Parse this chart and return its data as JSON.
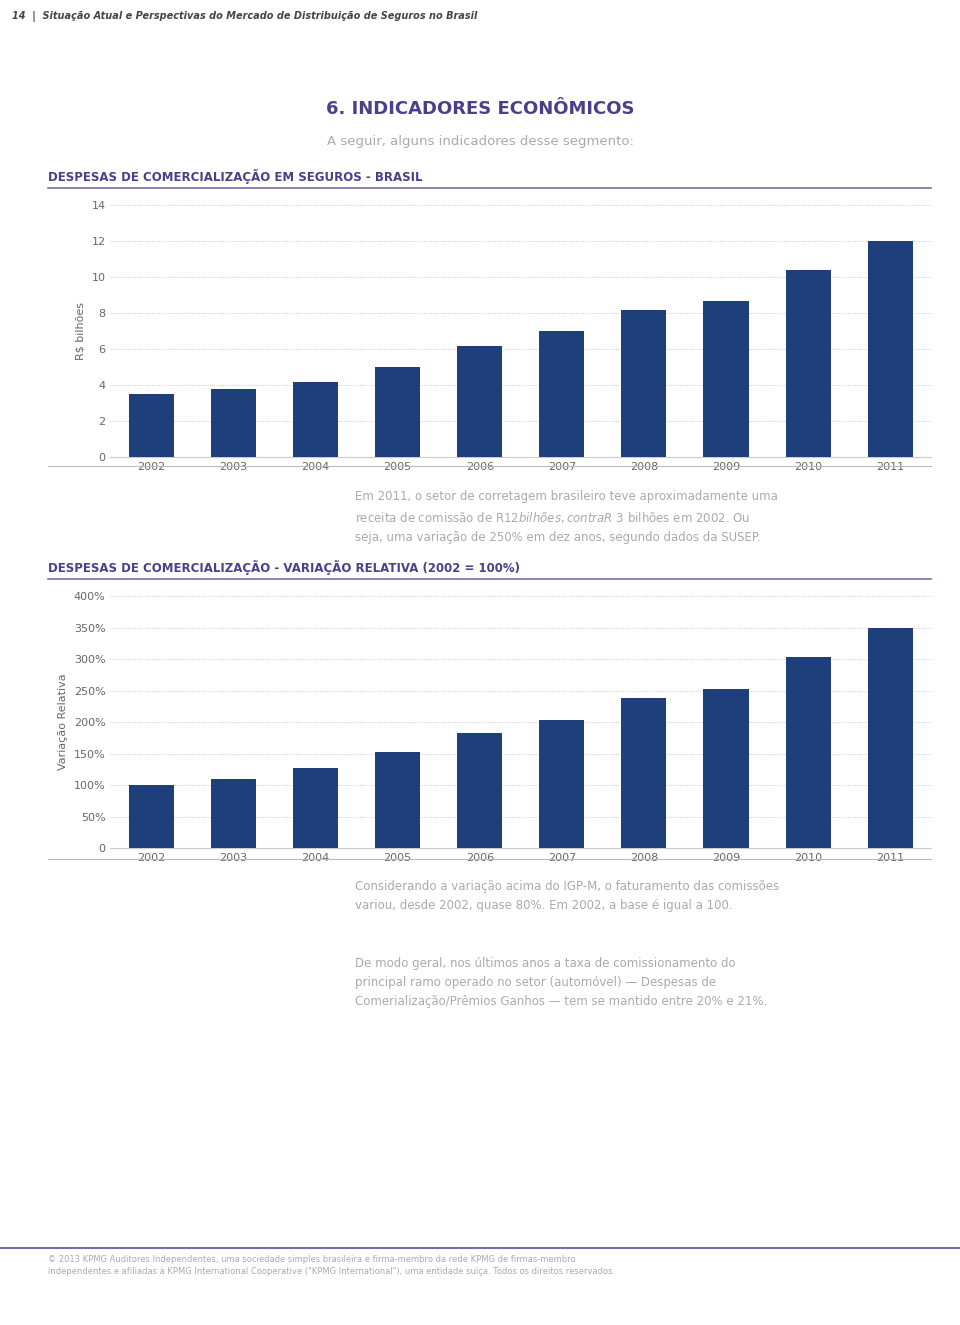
{
  "page_number": "14",
  "header_text": "Situação Atual e Perspectivas do Mercado de Distribuição de Seguros no Brasil",
  "section_title": "6. INDICADORES ECONÔMICOS",
  "section_subtitle": "A seguir, alguns indicadores desse segmento:",
  "chart1_title": "DESPESAS DE COMERCIALIZAÇÃO EM SEGUROS - BRASIL",
  "chart1_ylabel": "R$ bilhões",
  "chart1_years": [
    2002,
    2003,
    2004,
    2005,
    2006,
    2007,
    2008,
    2009,
    2010,
    2011
  ],
  "chart1_values": [
    3.5,
    3.8,
    4.2,
    5.0,
    6.2,
    7.0,
    8.2,
    8.7,
    10.4,
    12.0
  ],
  "chart1_ylim": [
    0,
    14
  ],
  "chart1_yticks": [
    0,
    2,
    4,
    6,
    8,
    10,
    12,
    14
  ],
  "chart1_bar_color": "#1F3F7A",
  "chart1_grid_color": "#BBBBBB",
  "paragraph1": "Em 2011, o setor de corretagem brasileiro teve aproximadamente uma\nreceita de comissão de R$ 12 bilhões, contra R$ 3 bilhões em 2002. Ou\nseja, uma variação de 250% em dez anos, segundo dados da SUSEP.",
  "chart2_title": "DESPESAS DE COMERCIALIZAÇÃO - VARIAÇÃO RELATIVA (2002 = 100%)",
  "chart2_ylabel": "Variação Relativa",
  "chart2_years": [
    2002,
    2003,
    2004,
    2005,
    2006,
    2007,
    2008,
    2009,
    2010,
    2011
  ],
  "chart2_values": [
    100,
    110,
    127,
    152,
    182,
    204,
    239,
    252,
    304,
    349
  ],
  "chart2_ylim": [
    0,
    400
  ],
  "chart2_ytick_values": [
    0,
    50,
    100,
    150,
    200,
    250,
    300,
    350,
    400
  ],
  "chart2_ytick_labels": [
    "0",
    "50%",
    "100%",
    "150%",
    "200%",
    "250%",
    "300%",
    "350%",
    "400%"
  ],
  "chart2_bar_color": "#1F3F7A",
  "chart2_grid_color": "#BBBBBB",
  "paragraph2": "Considerando a variação acima do IGP-M, o faturamento das comissões\nvariou, desde 2002, quase 80%. Em 2002, a base é igual a 100.",
  "paragraph3": "De modo geral, nos últimos anos a taxa de comissionamento do\nprincipal ramo operado no setor (automóvel) — Despesas de\nComerialização/Prêmios Ganhos — tem se mantido entre 20% e 21%.",
  "footer_line1": "© 2013 KPMG Auditores Independentes, uma sociedade simples brasileira e firma-membro da rede KPMG de firmas-membro",
  "footer_line2": "independentes e afiliadas à KPMG International Cooperative (\"KPMG International\"), uma entidade suíça. Todos os direitos reservados.",
  "title_color": "#4B3F8C",
  "text_color": "#AAAAAA",
  "bg_color": "#FFFFFF",
  "bar_width": 0.55,
  "accent_color": "#7B6BA8"
}
